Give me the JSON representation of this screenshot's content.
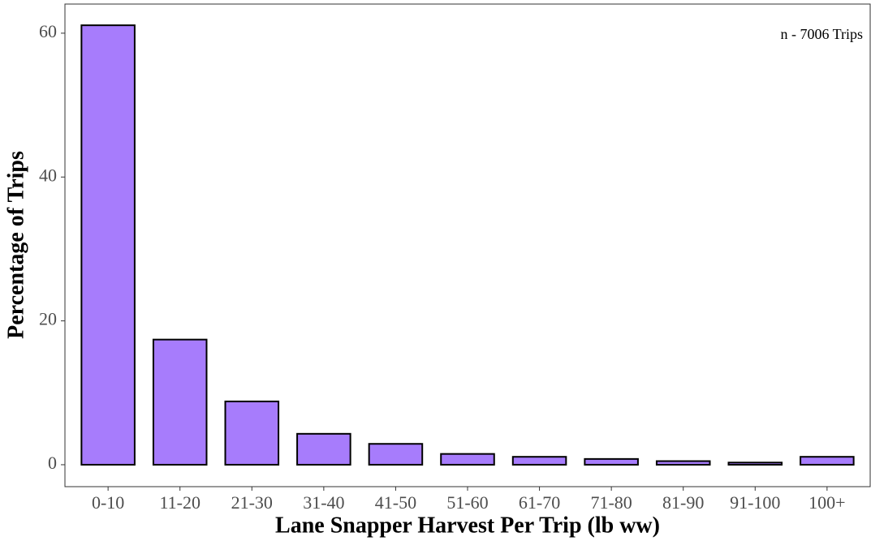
{
  "chart_data": {
    "type": "bar",
    "x_label": "Lane Snapper Harvest Per Trip (lb ww)",
    "y_label": "Percentage of Trips",
    "annotation": "n - 7006 Trips",
    "categories": [
      "0-10",
      "11-20",
      "21-30",
      "31-40",
      "41-50",
      "51-60",
      "61-70",
      "71-80",
      "81-90",
      "91-100",
      "100+"
    ],
    "values": [
      61.1,
      17.4,
      8.8,
      4.3,
      2.9,
      1.5,
      1.1,
      0.8,
      0.5,
      0.3,
      1.1
    ],
    "color": "#a77cfc",
    "ylim": [
      -3.05,
      64.05
    ],
    "yticks": [
      0,
      20,
      40,
      60
    ],
    "grid": false
  }
}
